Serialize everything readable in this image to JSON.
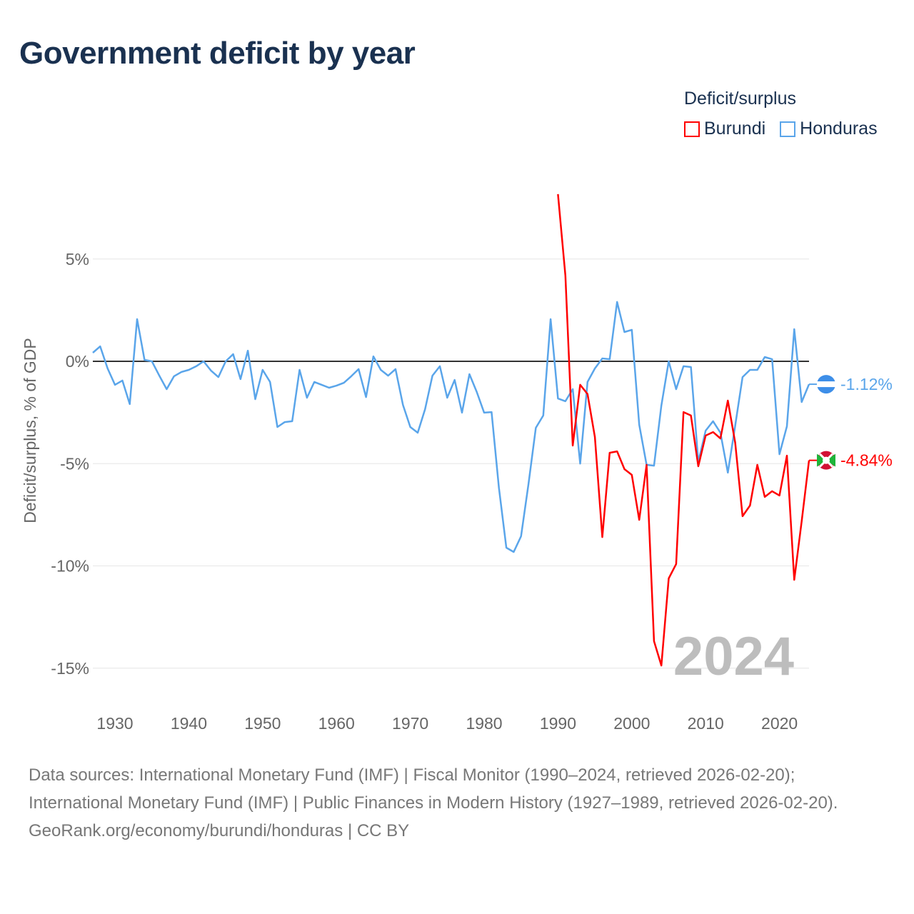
{
  "title": "Government deficit by year",
  "legend": {
    "title": "Deficit/surplus",
    "items": [
      {
        "label": "Burundi",
        "color": "#ff0000"
      },
      {
        "label": "Honduras",
        "color": "#5aa5ea"
      }
    ]
  },
  "footer": {
    "sources": "Data sources: International Monetary Fund (IMF) | Fiscal Monitor (1990–2024, retrieved 2026-02-20); International Monetary Fund (IMF) | Public Finances in Modern History (1927–1989, retrieved 2026-02-20).",
    "credit": "GeoRank.org/economy/burundi/honduras | CC BY"
  },
  "chart_data": {
    "type": "line",
    "title": "Government deficit by year",
    "xlabel": "",
    "ylabel": "Deficit/surplus, % of GDP",
    "xlim": [
      1927,
      2024
    ],
    "ylim": [
      -17,
      8.5
    ],
    "yticks": [
      5,
      0,
      -5,
      -10,
      -15
    ],
    "ytick_labels": [
      "5%",
      "0%",
      "-5%",
      "-10%",
      "-15%"
    ],
    "xticks": [
      1930,
      1940,
      1950,
      1960,
      1970,
      1980,
      1990,
      2000,
      2010,
      2020
    ],
    "xtick_labels": [
      "1930",
      "1940",
      "1950",
      "1960",
      "1970",
      "1980",
      "1990",
      "2000",
      "2010",
      "2020"
    ],
    "year_watermark": "2024",
    "legend_position": "top-right",
    "series": [
      {
        "name": "Honduras",
        "color": "#5aa5ea",
        "start_year": 1927,
        "end_label": "-1.12%",
        "values": [
          0.42,
          0.73,
          -0.35,
          -1.15,
          -0.94,
          -2.09,
          2.06,
          0.07,
          0,
          -0.7,
          -1.36,
          -0.73,
          -0.52,
          -0.42,
          -0.24,
          0,
          -0.45,
          -0.77,
          0,
          0.35,
          -0.87,
          0.52,
          -1.85,
          -0.42,
          -1.01,
          -3.21,
          -2.97,
          -2.93,
          -0.42,
          -1.78,
          -1.01,
          -1.15,
          -1.29,
          -1.19,
          -1.05,
          -0.73,
          -0.38,
          -1.75,
          0.24,
          -0.42,
          -0.7,
          -0.38,
          -2.13,
          -3.21,
          -3.49,
          -2.34,
          -0.7,
          -0.24,
          -1.78,
          -0.91,
          -2.51,
          -0.63,
          -1.5,
          -2.51,
          -2.48,
          -6.18,
          -9.11,
          -9.32,
          -8.55,
          -6.0,
          -3.25,
          -2.65,
          2.06,
          -1.82,
          -1.95,
          -1.36,
          -5.0,
          -1.01,
          -0.35,
          0.14,
          0.1,
          2.9,
          1.43,
          1.54,
          -3.1,
          -5.06,
          -5.1,
          -2.16,
          0,
          -1.36,
          -0.24,
          -0.28,
          -4.92,
          -3.39,
          -2.93,
          -3.49,
          -5.44,
          -3.14,
          -0.77,
          -0.42,
          -0.42,
          0.21,
          0.1,
          -4.54,
          -3.18,
          1.57,
          -1.99,
          -1.12
        ]
      },
      {
        "name": "Burundi",
        "color": "#ff0000",
        "start_year": 1990,
        "end_label": "-4.84%",
        "values": [
          8.17,
          4.19,
          -4.12,
          -1.15,
          -1.6,
          -3.7,
          -8.59,
          -4.47,
          -4.4,
          -5.27,
          -5.55,
          -7.75,
          -5.06,
          -13.68,
          -14.87,
          -10.61,
          -9.91,
          -2.48,
          -2.65,
          -5.13,
          -3.63,
          -3.46,
          -3.77,
          -1.92,
          -3.98,
          -7.57,
          -7.05,
          -5.06,
          -6.63,
          -6.35,
          -6.56,
          -4.61,
          -10.68,
          -7.82,
          -4.84
        ]
      }
    ]
  }
}
